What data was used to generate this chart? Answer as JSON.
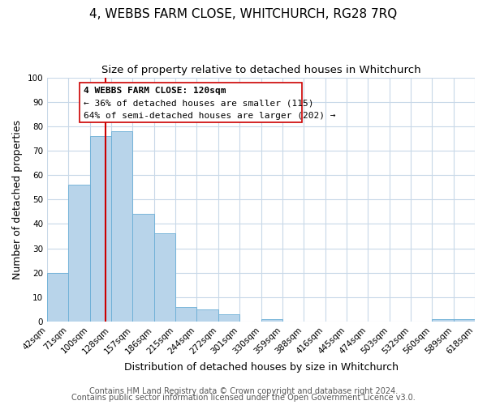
{
  "title": "4, WEBBS FARM CLOSE, WHITCHURCH, RG28 7RQ",
  "subtitle": "Size of property relative to detached houses in Whitchurch",
  "xlabel": "Distribution of detached houses by size in Whitchurch",
  "ylabel": "Number of detached properties",
  "bin_edges": [
    42,
    71,
    100,
    128,
    157,
    186,
    215,
    244,
    272,
    301,
    330,
    359,
    388,
    416,
    445,
    474,
    503,
    532,
    560,
    589,
    618
  ],
  "bar_values": [
    20,
    56,
    76,
    78,
    44,
    36,
    6,
    5,
    3,
    0,
    1,
    0,
    0,
    0,
    0,
    0,
    0,
    0,
    1,
    1
  ],
  "tick_labels": [
    "42sqm",
    "71sqm",
    "100sqm",
    "128sqm",
    "157sqm",
    "186sqm",
    "215sqm",
    "244sqm",
    "272sqm",
    "301sqm",
    "330sqm",
    "359sqm",
    "388sqm",
    "416sqm",
    "445sqm",
    "474sqm",
    "503sqm",
    "532sqm",
    "560sqm",
    "589sqm",
    "618sqm"
  ],
  "bar_color": "#b8d4ea",
  "bar_edge_color": "#6aaed6",
  "vline_value": 120,
  "vline_color": "#cc0000",
  "ylim": [
    0,
    100
  ],
  "yticks": [
    0,
    10,
    20,
    30,
    40,
    50,
    60,
    70,
    80,
    90,
    100
  ],
  "annotation_lines": [
    "4 WEBBS FARM CLOSE: 120sqm",
    "← 36% of detached houses are smaller (115)",
    "64% of semi-detached houses are larger (202) →"
  ],
  "footer_line1": "Contains HM Land Registry data © Crown copyright and database right 2024.",
  "footer_line2": "Contains public sector information licensed under the Open Government Licence v3.0.",
  "background_color": "#ffffff",
  "grid_color": "#c8d8e8",
  "title_fontsize": 11,
  "subtitle_fontsize": 9.5,
  "axis_label_fontsize": 9,
  "tick_fontsize": 7.5,
  "footer_fontsize": 7,
  "annotation_fontsize": 8
}
